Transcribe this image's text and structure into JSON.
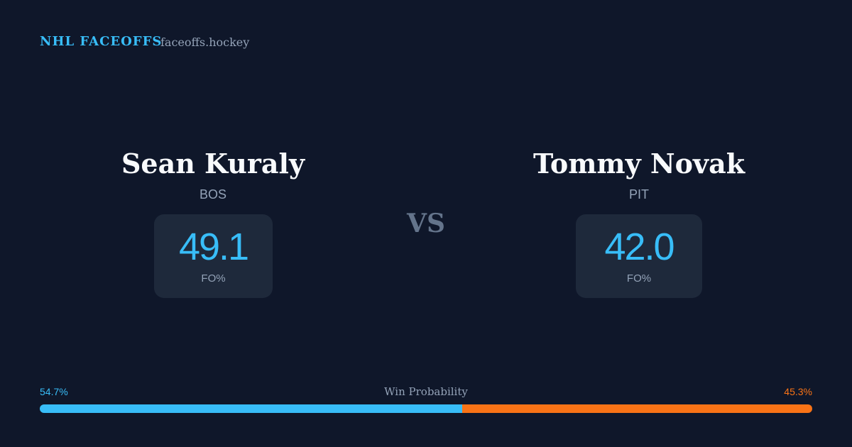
{
  "header": {
    "title": "NHL FACEOFFS",
    "site": "faceoffs.hockey"
  },
  "players": [
    {
      "name": "Sean Kuraly",
      "team": "BOS",
      "fo_pct": "49.1",
      "fo_label": "FO%"
    },
    {
      "name": "Tommy Novak",
      "team": "PIT",
      "fo_pct": "42.0",
      "fo_label": "FO%"
    }
  ],
  "vs": "VS",
  "win_probability": {
    "label": "Win Probability",
    "left": {
      "value": 54.7,
      "label": "54.7%",
      "color": "#38bdf8"
    },
    "right": {
      "value": 45.3,
      "label": "45.3%",
      "color": "#f97316"
    }
  }
}
